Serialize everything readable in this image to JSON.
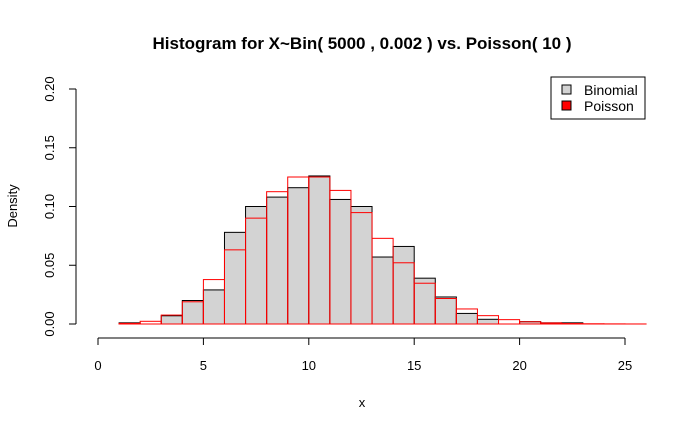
{
  "chart_data": {
    "type": "bar",
    "title": "Histogram for X~Bin( 5000 , 0.002 ) vs. Poisson( 10 )",
    "xlabel": "x",
    "ylabel": "Density",
    "xlim": [
      0,
      26
    ],
    "ylim": [
      0,
      0.2
    ],
    "x_ticks": [
      "0",
      "5",
      "10",
      "15",
      "20",
      "25"
    ],
    "y_ticks": [
      "0.00",
      "0.05",
      "0.10",
      "0.15",
      "0.20"
    ],
    "x_tick_values": [
      0,
      5,
      10,
      15,
      20,
      25
    ],
    "y_tick_values": [
      0,
      0.05,
      0.1,
      0.15,
      0.2
    ],
    "legend": {
      "placement": "top-right",
      "entries": [
        "Binomial",
        "Poisson"
      ]
    },
    "grid": false,
    "bin_edges": [
      0,
      1,
      2,
      3,
      4,
      5,
      6,
      7,
      8,
      9,
      10,
      11,
      12,
      13,
      14,
      15,
      16,
      17,
      18,
      19,
      20,
      21,
      22,
      23,
      24,
      25,
      26
    ],
    "series": [
      {
        "name": "Binomial",
        "style": "filled-bars",
        "fill": "#d3d3d3",
        "stroke": "#000000",
        "values": [
          0,
          0.001,
          0,
          0.007,
          0.02,
          0.029,
          0.078,
          0.1,
          0.108,
          0.116,
          0.126,
          0.106,
          0.1,
          0.057,
          0.066,
          0.039,
          0.023,
          0.009,
          0.004,
          0,
          0.002,
          0.001,
          0.001,
          0,
          0,
          0
        ]
      },
      {
        "name": "Poisson",
        "style": "step-outline",
        "stroke": "#ff0000",
        "values": [
          0,
          0.0005,
          0.0023,
          0.0076,
          0.0189,
          0.0378,
          0.0631,
          0.0901,
          0.1126,
          0.1251,
          0.1251,
          0.1137,
          0.0948,
          0.0729,
          0.0521,
          0.0347,
          0.0217,
          0.0128,
          0.0071,
          0.0037,
          0.0019,
          0.0009,
          0.0004,
          0.0002,
          0.0001,
          3e-05
        ]
      }
    ]
  }
}
